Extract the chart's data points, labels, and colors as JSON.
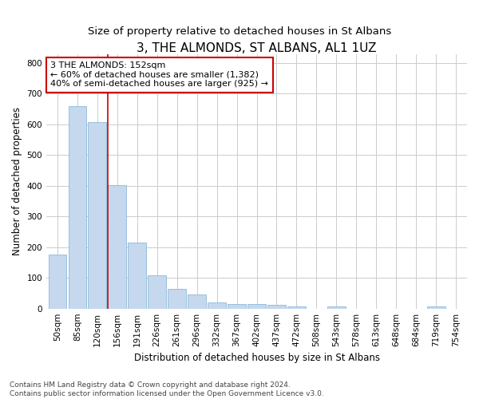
{
  "title": "3, THE ALMONDS, ST ALBANS, AL1 1UZ",
  "subtitle": "Size of property relative to detached houses in St Albans",
  "xlabel": "Distribution of detached houses by size in St Albans",
  "ylabel": "Number of detached properties",
  "categories": [
    "50sqm",
    "85sqm",
    "120sqm",
    "156sqm",
    "191sqm",
    "226sqm",
    "261sqm",
    "296sqm",
    "332sqm",
    "367sqm",
    "402sqm",
    "437sqm",
    "472sqm",
    "508sqm",
    "543sqm",
    "578sqm",
    "613sqm",
    "648sqm",
    "684sqm",
    "719sqm",
    "754sqm"
  ],
  "values": [
    175,
    660,
    607,
    402,
    215,
    108,
    63,
    46,
    20,
    16,
    15,
    11,
    8,
    0,
    7,
    0,
    0,
    0,
    0,
    8,
    0
  ],
  "bar_color": "#c5d8ed",
  "bar_edge_color": "#7bafd4",
  "vline_index": 3,
  "vline_color": "#cc0000",
  "annotation_line1": "3 THE ALMONDS: 152sqm",
  "annotation_line2": "← 60% of detached houses are smaller (1,382)",
  "annotation_line3": "40% of semi-detached houses are larger (925) →",
  "annotation_box_color": "#ffffff",
  "annotation_box_edge": "#cc0000",
  "ylim": [
    0,
    830
  ],
  "yticks": [
    0,
    100,
    200,
    300,
    400,
    500,
    600,
    700,
    800
  ],
  "title_fontsize": 11,
  "subtitle_fontsize": 9.5,
  "axis_label_fontsize": 8.5,
  "tick_fontsize": 7.5,
  "annot_fontsize": 8,
  "footnote": "Contains HM Land Registry data © Crown copyright and database right 2024.\nContains public sector information licensed under the Open Government Licence v3.0.",
  "footnote_fontsize": 6.5,
  "background_color": "#ffffff",
  "plot_bg_color": "#ffffff",
  "grid_color": "#cccccc"
}
